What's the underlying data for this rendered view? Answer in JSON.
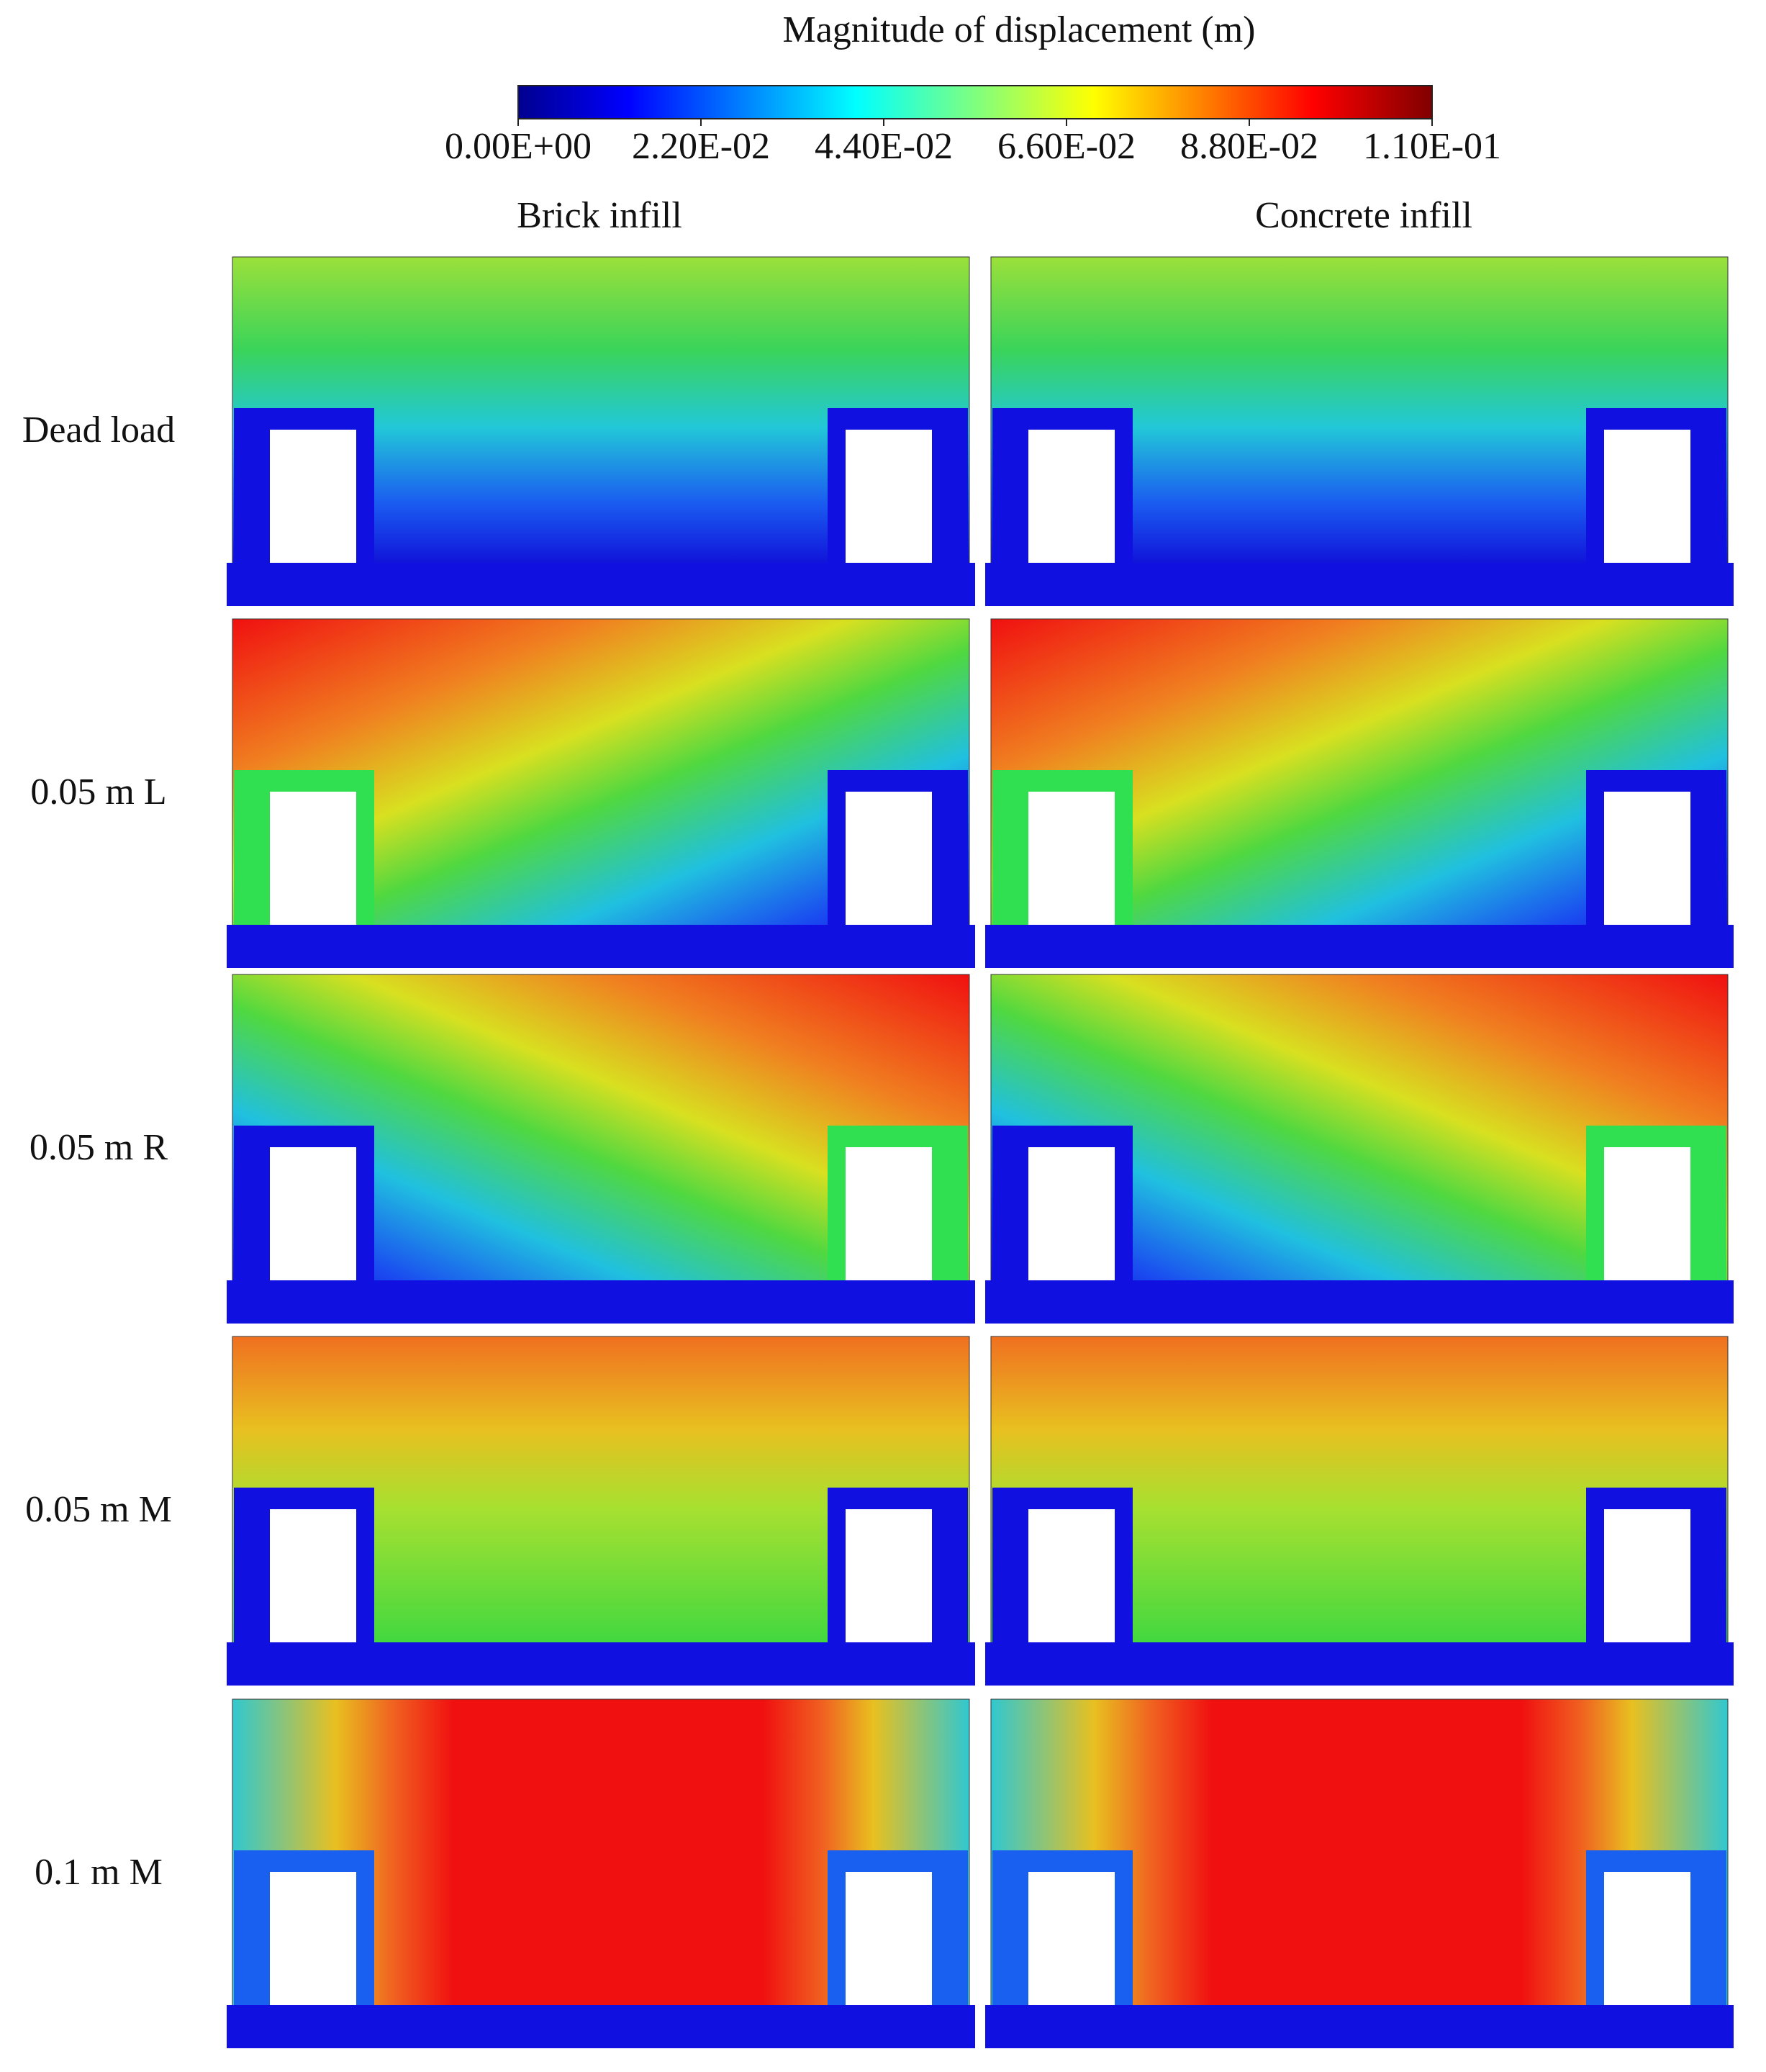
{
  "colorbar": {
    "title": "Magnitude of displacement (m)",
    "ticks": [
      {
        "value": 0,
        "label": "0.00E+00"
      },
      {
        "value": 0.022,
        "label": "2.20E-02"
      },
      {
        "value": 0.044,
        "label": "4.40E-02"
      },
      {
        "value": 0.066,
        "label": "6.60E-02"
      },
      {
        "value": 0.088,
        "label": "8.80E-02"
      },
      {
        "value": 0.11,
        "label": "1.10E-01"
      }
    ]
  },
  "columns": [
    "Brick infill",
    "Concrete infill"
  ],
  "rows": [
    "Dead load",
    "0.05 m L",
    "0.05 m R",
    "0.05 m M",
    "0.1 m M"
  ]
}
